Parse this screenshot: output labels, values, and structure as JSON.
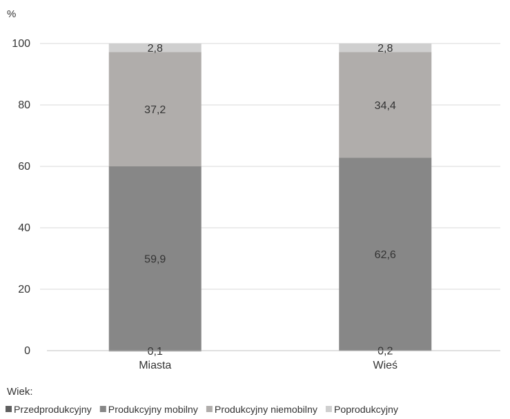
{
  "chart_data": {
    "type": "bar",
    "stacked": true,
    "y_unit_label": "%",
    "categories": [
      "Miasta",
      "Wieś"
    ],
    "ylim": [
      0,
      100
    ],
    "yticks": [
      0,
      20,
      40,
      60,
      80,
      100
    ],
    "grid": true,
    "legend_title": "Wiek:",
    "legend_position": "bottom",
    "series": [
      {
        "name": "Przedprodukcyjny",
        "values": [
          0.1,
          0.2
        ],
        "labels": [
          "0,1",
          "0,2"
        ],
        "color": "#5f5f5f"
      },
      {
        "name": "Produkcyjny mobilny",
        "values": [
          59.9,
          62.6
        ],
        "labels": [
          "59,9",
          "62,6"
        ],
        "color": "#878787"
      },
      {
        "name": "Produkcyjny niemobilny",
        "values": [
          37.2,
          34.4
        ],
        "labels": [
          "37,2",
          "34,4"
        ],
        "color": "#b0adab"
      },
      {
        "name": "Poprodukcyjny",
        "values": [
          2.8,
          2.8
        ],
        "labels": [
          "2,8",
          "2,8"
        ],
        "color": "#cfcfcf"
      }
    ]
  }
}
